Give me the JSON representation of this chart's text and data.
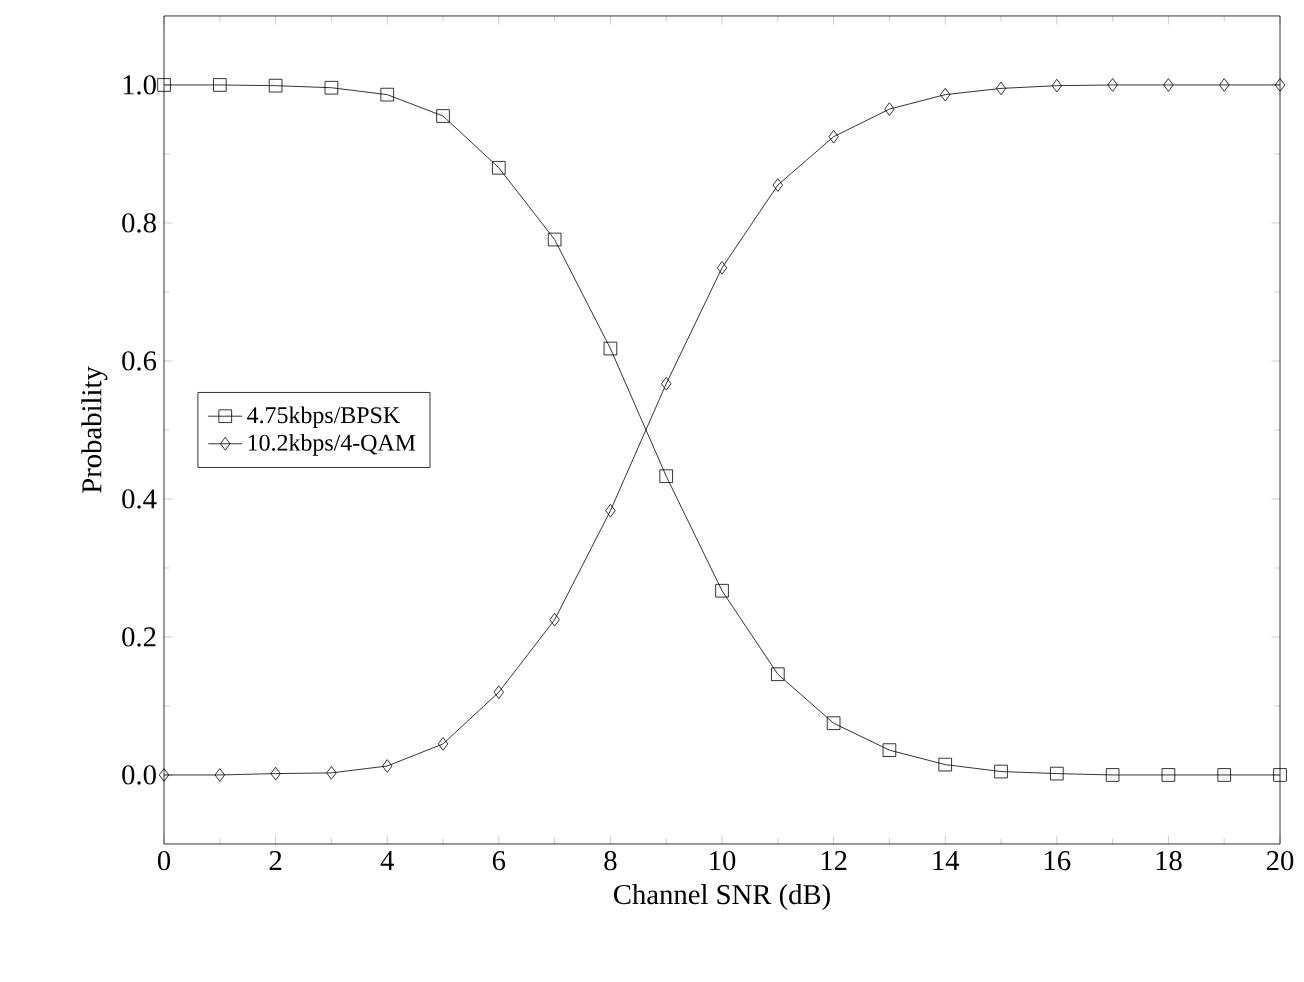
{
  "chart_data": {
    "type": "line",
    "xlabel": "Channel SNR (dB)",
    "ylabel": "Probability",
    "x": [
      0,
      1,
      2,
      3,
      4,
      5,
      6,
      7,
      8,
      9,
      10,
      11,
      12,
      13,
      14,
      15,
      16,
      17,
      18,
      19,
      20
    ],
    "series": [
      {
        "name": "4.75kbps/BPSK",
        "color": "#000000",
        "marker": "square",
        "values": [
          1.0,
          1.0,
          0.999,
          0.996,
          0.986,
          0.955,
          0.88,
          0.776,
          0.618,
          0.433,
          0.267,
          0.146,
          0.075,
          0.036,
          0.015,
          0.005,
          0.002,
          0,
          0,
          0,
          0
        ]
      },
      {
        "name": "10.2kbps/4-QAM",
        "color": "#000000",
        "marker": "diamond",
        "values": [
          0,
          0,
          0.002,
          0.003,
          0.013,
          0.045,
          0.12,
          0.225,
          0.383,
          0.567,
          0.735,
          0.855,
          0.925,
          0.965,
          0.986,
          0.995,
          0.999,
          1,
          1,
          1,
          1
        ]
      }
    ],
    "xlim": [
      0,
      20
    ],
    "xticks": [
      0,
      2,
      4,
      6,
      8,
      10,
      12,
      14,
      16,
      18,
      20
    ],
    "ylim": [
      -0.1,
      1.1
    ],
    "yticks": [
      {
        "value": 0,
        "label": "0.0"
      },
      {
        "value": 0.2,
        "label": "0.2"
      },
      {
        "value": 0.4,
        "label": "0.4"
      },
      {
        "value": 0.6,
        "label": "0.6"
      },
      {
        "value": 0.8,
        "label": "0.8"
      },
      {
        "value": 1,
        "label": "1.0"
      }
    ],
    "legend": "left",
    "line_style": "solid",
    "grid": false
  }
}
